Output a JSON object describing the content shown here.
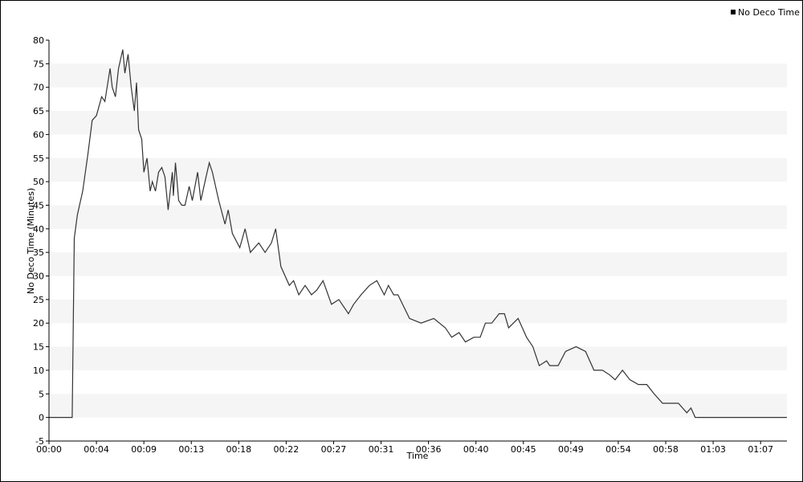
{
  "chart_data": {
    "type": "line",
    "xlabel": "Time",
    "ylabel": "No Deco Time (Minutes)",
    "legend": "top-right",
    "grid": "bands",
    "xlim": [
      0,
      70
    ],
    "ylim": [
      -5,
      80
    ],
    "xticks": [
      {
        "value": 0,
        "label": "00:00"
      },
      {
        "value": 4.5,
        "label": "00:04"
      },
      {
        "value": 9,
        "label": "00:09"
      },
      {
        "value": 13.5,
        "label": "00:13"
      },
      {
        "value": 18,
        "label": "00:18"
      },
      {
        "value": 22.5,
        "label": "00:22"
      },
      {
        "value": 27,
        "label": "00:27"
      },
      {
        "value": 31.5,
        "label": "00:31"
      },
      {
        "value": 36,
        "label": "00:36"
      },
      {
        "value": 40.5,
        "label": "00:40"
      },
      {
        "value": 45,
        "label": "00:45"
      },
      {
        "value": 49.5,
        "label": "00:49"
      },
      {
        "value": 54,
        "label": "00:54"
      },
      {
        "value": 58.5,
        "label": "00:58"
      },
      {
        "value": 63,
        "label": "01:03"
      },
      {
        "value": 67.5,
        "label": "01:07"
      }
    ],
    "yticks": [
      -5,
      0,
      5,
      10,
      15,
      20,
      25,
      30,
      35,
      40,
      45,
      50,
      55,
      60,
      65,
      70,
      75,
      80
    ],
    "x": [
      0,
      2.2,
      2.4,
      2.7,
      3.2,
      3.7,
      4.1,
      4.5,
      5.0,
      5.3,
      5.8,
      6.0,
      6.3,
      6.6,
      7.0,
      7.2,
      7.5,
      7.8,
      8.1,
      8.3,
      8.5,
      8.8,
      9.0,
      9.3,
      9.6,
      9.8,
      10.1,
      10.4,
      10.7,
      11.0,
      11.3,
      11.7,
      11.8,
      12.0,
      12.3,
      12.6,
      12.9,
      13.3,
      13.6,
      14.1,
      14.4,
      14.9,
      15.2,
      15.5,
      16.1,
      16.7,
      17.0,
      17.4,
      18.1,
      18.6,
      19.1,
      19.9,
      20.5,
      21.1,
      21.5,
      22.0,
      22.8,
      23.2,
      23.7,
      24.3,
      24.9,
      25.4,
      26.0,
      26.8,
      27.5,
      28.4,
      28.9,
      29.6,
      30.4,
      31.1,
      31.8,
      32.2,
      32.7,
      33.1,
      34.2,
      35.3,
      36.5,
      37.6,
      38.2,
      38.9,
      39.5,
      40.3,
      40.9,
      41.4,
      42.0,
      42.7,
      43.2,
      43.6,
      44.5,
      44.9,
      45.3,
      45.9,
      46.5,
      47.2,
      47.5,
      48.3,
      49.0,
      50.0,
      50.9,
      51.7,
      52.5,
      53.2,
      53.7,
      54.4,
      55.1,
      55.9,
      56.7,
      57.4,
      58.2,
      59.7,
      60.5,
      60.9,
      61.3,
      70.0
    ],
    "series": [
      {
        "name": "No Deco Time",
        "color": "#333333",
        "values": [
          0,
          0,
          38,
          43,
          48,
          56,
          63,
          64,
          68,
          67,
          74,
          70,
          68,
          74,
          78,
          73,
          77,
          70,
          65,
          71,
          61,
          59,
          52,
          55,
          48,
          50,
          48,
          52,
          53,
          51,
          44,
          52,
          47,
          54,
          46,
          45,
          45,
          49,
          46,
          52,
          46,
          51,
          54,
          52,
          46,
          41,
          44,
          39,
          36,
          40,
          35,
          37,
          35,
          37,
          40,
          32,
          28,
          29,
          26,
          28,
          26,
          27,
          29,
          24,
          25,
          22,
          24,
          26,
          28,
          29,
          26,
          28,
          26,
          26,
          21,
          20,
          21,
          19,
          17,
          18,
          16,
          17,
          17,
          20,
          20,
          22,
          22,
          19,
          21,
          19,
          17,
          15,
          11,
          12,
          11,
          11,
          14,
          15,
          14,
          10,
          10,
          9,
          8,
          10,
          8,
          7,
          7,
          5,
          3,
          3,
          1,
          2,
          0,
          0
        ]
      }
    ]
  }
}
